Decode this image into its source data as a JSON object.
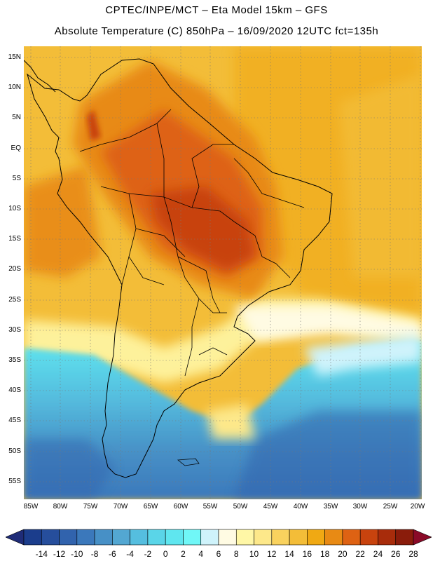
{
  "title": {
    "line1": "CPTEC/INPE/MCT –  Eta Model 15km – GFS",
    "line2": "Absolute Temperature (C) 850hPa – 16/09/2020 12UTC fct=135h"
  },
  "map": {
    "lat_labels": [
      "15N",
      "10N",
      "5N",
      "EQ",
      "5S",
      "10S",
      "15S",
      "20S",
      "25S",
      "30S",
      "35S",
      "40S",
      "45S",
      "50S",
      "55S"
    ],
    "lon_labels": [
      "85W",
      "80W",
      "75W",
      "70W",
      "65W",
      "60W",
      "55W",
      "50W",
      "45W",
      "40W",
      "35W",
      "30W",
      "25W",
      "20W"
    ]
  },
  "colorbar": {
    "labels": [
      "-14",
      "-12",
      "-10",
      "-8",
      "-6",
      "-4",
      "-2",
      "0",
      "2",
      "4",
      "6",
      "8",
      "10",
      "12",
      "14",
      "16",
      "18",
      "20",
      "22",
      "24",
      "26",
      "28"
    ],
    "colors": [
      "#1b3d8c",
      "#264e9c",
      "#3163ad",
      "#3b78bb",
      "#4790c6",
      "#53a7d2",
      "#55bedf",
      "#5ad5e8",
      "#5fe6ef",
      "#70f7f7",
      "#cff3fb",
      "#fffbe3",
      "#fff7a6",
      "#fde88a",
      "#f9d25e",
      "#f3bd38",
      "#f0a913",
      "#e88a14",
      "#de6213",
      "#c8430e",
      "#a82c0b",
      "#8a1c0b"
    ],
    "under_color": "#1f2c78",
    "over_color": "#8a0a28"
  }
}
